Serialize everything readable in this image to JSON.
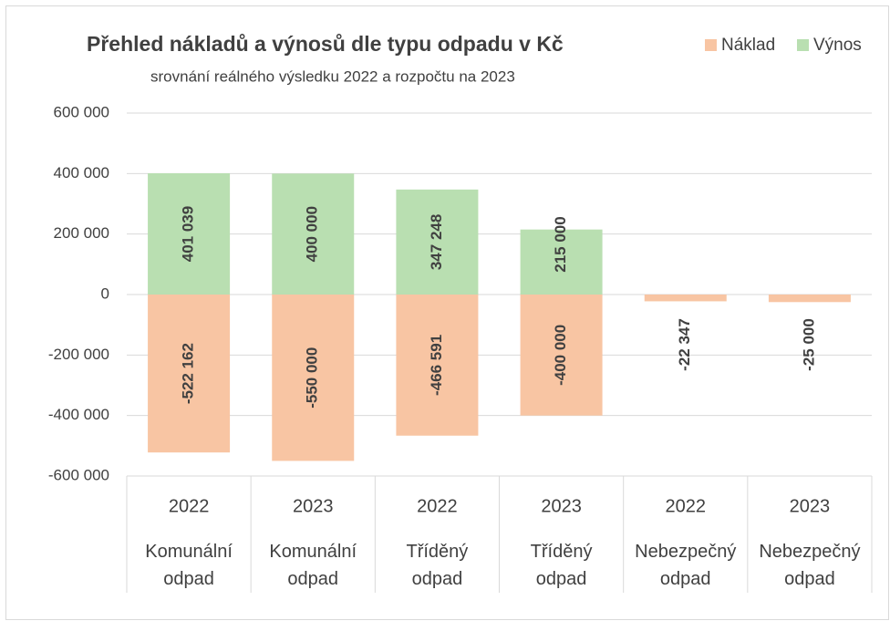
{
  "chart_data": {
    "type": "bar",
    "stacked": true,
    "title": "Přehled nákladů a výnosů dle typu odpadu v Kč",
    "subtitle": "srovnání reálného výsledku 2022 a rozpočtu na 2023",
    "categories": [
      "2022",
      "2023",
      "2022",
      "2023",
      "2022",
      "2023"
    ],
    "category_groups": [
      "Komunální odpad",
      "Komunální odpad",
      "Tříděný odpad",
      "Tříděný odpad",
      "Nebezpečný odpad",
      "Nebezpečný odpad"
    ],
    "series": [
      {
        "name": "Náklad",
        "color": "#f8c5a3",
        "values": [
          -522162,
          -550000,
          -466591,
          -400000,
          -22347,
          -25000
        ],
        "value_labels": [
          "-522 162",
          "-550 000",
          "-466 591",
          "-400 000",
          "-22 347",
          "-25 000"
        ]
      },
      {
        "name": "Výnos",
        "color": "#b9dfb1",
        "values": [
          401039,
          400000,
          347248,
          215000,
          null,
          null
        ],
        "value_labels": [
          "401 039",
          "400 000",
          "347 248",
          "215 000",
          null,
          null
        ]
      }
    ],
    "ylim": [
      -600000,
      600000
    ],
    "yticks": [
      {
        "value": -600000,
        "label": "-600 000"
      },
      {
        "value": -400000,
        "label": "-400 000"
      },
      {
        "value": -200000,
        "label": "-200 000"
      },
      0,
      {
        "value": 200000,
        "label": "200 000"
      },
      {
        "value": 400000,
        "label": "400 000"
      },
      {
        "value": 600000,
        "label": "600 000"
      }
    ],
    "grid": true,
    "legend": "top-right"
  }
}
